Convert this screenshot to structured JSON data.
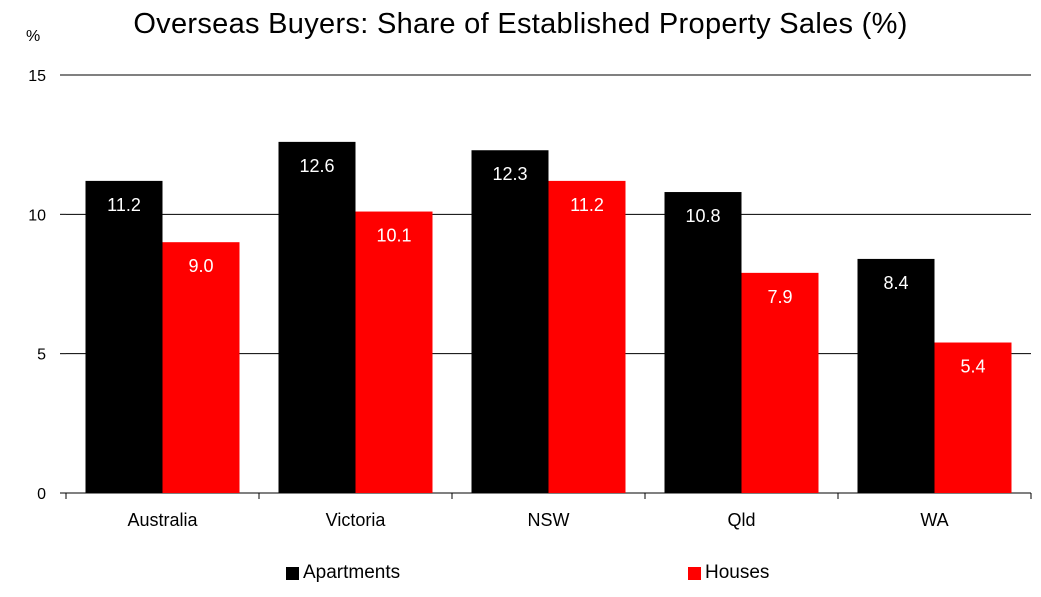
{
  "title": "Overseas Buyers: Share of Established Property Sales (%)",
  "unit_label": "%",
  "colors": {
    "apartments": "#000000",
    "houses": "#ff0000",
    "gridline": "#000000",
    "label_text": "#ffffff"
  },
  "chart_data": {
    "type": "bar",
    "title": "Overseas Buyers: Share of Established Property Sales (%)",
    "ylabel": "%",
    "xlabel": "",
    "ylim": [
      0,
      15
    ],
    "yticks": [
      "0",
      "5",
      "10",
      "15"
    ],
    "grid": true,
    "legend_position": "bottom",
    "categories": [
      "Australia",
      "Victoria",
      "NSW",
      "Qld",
      "WA"
    ],
    "series": [
      {
        "name": "Apartments",
        "values": [
          11.2,
          12.6,
          12.3,
          10.8,
          8.4
        ],
        "labels": [
          "11.2",
          "12.6",
          "12.3",
          "10.8",
          "8.4"
        ]
      },
      {
        "name": "Houses",
        "values": [
          9.0,
          10.1,
          11.2,
          7.9,
          5.4
        ],
        "labels": [
          "9.0",
          "10.1",
          "11.2",
          "7.9",
          "5.4"
        ]
      }
    ]
  }
}
